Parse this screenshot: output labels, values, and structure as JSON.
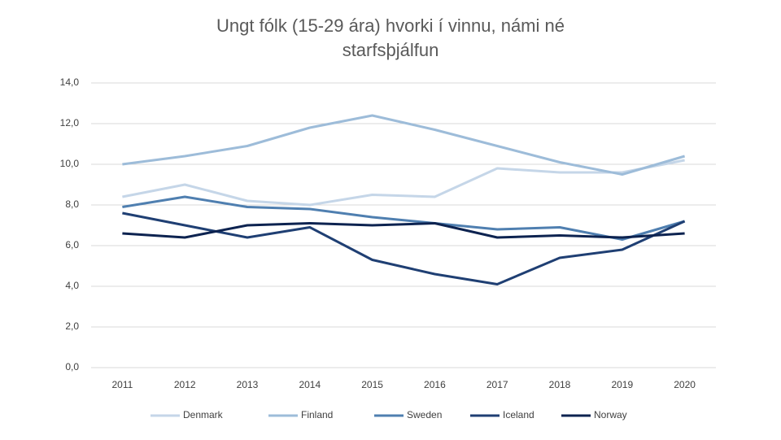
{
  "chart_data": {
    "type": "line",
    "title_lines": [
      "Ungt fólk (15-29 ára) hvorki í vinnu, námi né",
      "starfsþjálfun"
    ],
    "categories": [
      "2011",
      "2012",
      "2013",
      "2014",
      "2015",
      "2016",
      "2017",
      "2018",
      "2019",
      "2020"
    ],
    "series": [
      {
        "name": "Denmark",
        "color": "#c5d6e8",
        "values": [
          8.4,
          9.0,
          8.2,
          8.0,
          8.5,
          8.4,
          9.8,
          9.6,
          9.6,
          10.2
        ]
      },
      {
        "name": "Finland",
        "color": "#9dbcd9",
        "values": [
          10.0,
          10.4,
          10.9,
          11.8,
          12.4,
          11.7,
          10.9,
          10.1,
          9.5,
          10.4
        ]
      },
      {
        "name": "Sweden",
        "color": "#4f7fb0",
        "values": [
          7.9,
          8.4,
          7.9,
          7.8,
          7.4,
          7.1,
          6.8,
          6.9,
          6.3,
          7.2
        ]
      },
      {
        "name": "Iceland",
        "color": "#1f3f73",
        "values": [
          7.6,
          7.0,
          6.4,
          6.9,
          5.3,
          4.6,
          4.1,
          5.4,
          5.8,
          7.2
        ]
      },
      {
        "name": "Norway",
        "color": "#0d2350",
        "values": [
          6.6,
          6.4,
          7.0,
          7.1,
          7.0,
          7.1,
          6.4,
          6.5,
          6.4,
          6.6
        ]
      }
    ],
    "ylim": [
      0,
      14
    ],
    "yticks": [
      {
        "value": 0,
        "label": "0,0"
      },
      {
        "value": 2,
        "label": "2,0"
      },
      {
        "value": 4,
        "label": "4,0"
      },
      {
        "value": 6,
        "label": "6,0"
      },
      {
        "value": 8,
        "label": "8,0"
      },
      {
        "value": 10,
        "label": "10,0"
      },
      {
        "value": 12,
        "label": "12,0"
      },
      {
        "value": 14,
        "label": "14,0"
      }
    ],
    "grid": true,
    "legend": "bottom"
  }
}
